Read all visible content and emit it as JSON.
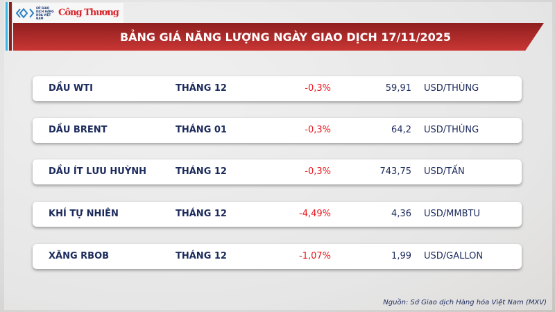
{
  "logo": {
    "exchange": "SỞ GIAO DỊCH HÀNG HÓA VIỆT NAM",
    "newspaper": "Công Thương"
  },
  "title": "BẢNG GIÁ NĂNG LƯỢNG NGÀY GIAO DỊCH 17/11/2025",
  "colors": {
    "banner": "#c93634",
    "text": "#1b2a5c",
    "negative": "#e8141b"
  },
  "rows": [
    {
      "name": "DẦU WTI",
      "month": "THÁNG 12",
      "change": "-0,3%",
      "price": "59,91",
      "unit": "USD/THÙNG"
    },
    {
      "name": "DẦU BRENT",
      "month": "THÁNG 01",
      "change": "-0,3%",
      "price": "64,2",
      "unit": "USD/THÙNG"
    },
    {
      "name": "DẦU ÍT LƯU HUỲNH",
      "month": "THÁNG 12",
      "change": "-0,3%",
      "price": "743,75",
      "unit": "USD/TẤN"
    },
    {
      "name": "KHÍ TỰ NHIÊN",
      "month": "THÁNG 12",
      "change": "-4,49%",
      "price": "4,36",
      "unit": "USD/MMBTU"
    },
    {
      "name": "XĂNG RBOB",
      "month": "THÁNG 12",
      "change": "-1,07%",
      "price": "1,99",
      "unit": "USD/GALLON"
    }
  ],
  "source": "Nguồn: Sở Giao dịch Hàng hóa Việt Nam (MXV)"
}
